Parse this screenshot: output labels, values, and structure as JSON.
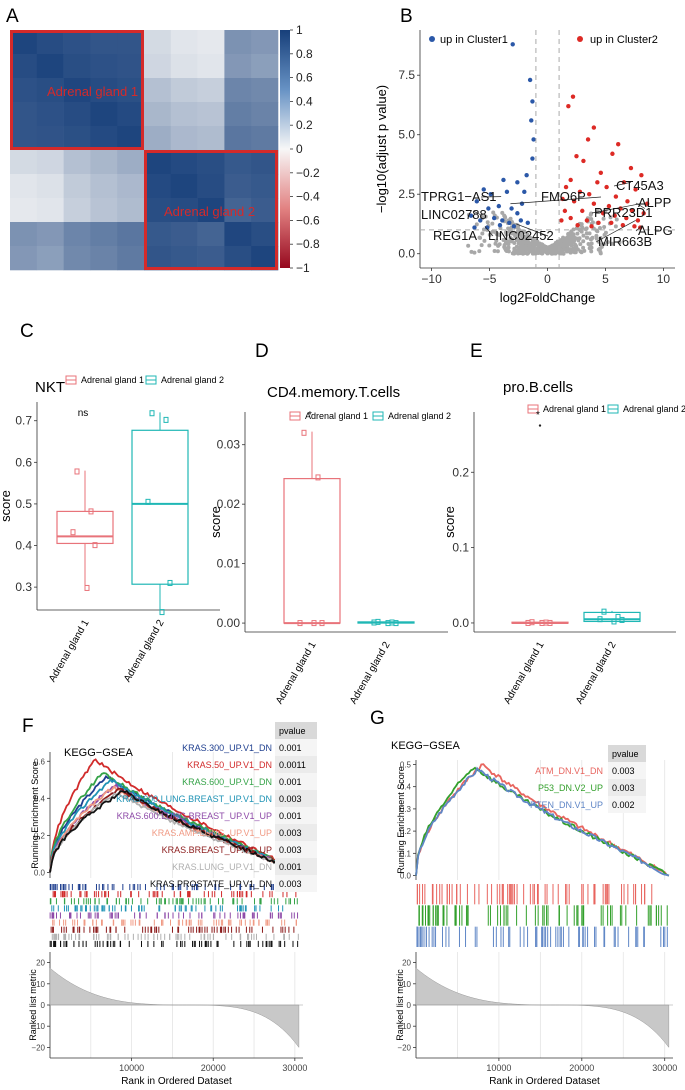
{
  "panel_letters": [
    "A",
    "B",
    "C",
    "D",
    "E",
    "F",
    "G"
  ],
  "colors": {
    "group1": "#e8737a",
    "group2": "#1fb7b5",
    "heat_dark_blue": "#173f7a",
    "heat_red": "#b40e26",
    "volcano_blue": "#2b58a8",
    "volcano_red": "#dd2a25",
    "volcano_grey": "#a8a8a8",
    "cluster_box": "#d42a2a"
  },
  "chart_data": [
    {
      "id": "A",
      "type": "heatmap",
      "title": "",
      "cluster_labels": [
        "Adrenal gland 1",
        "Adrenal gland 2"
      ],
      "colorbar_ticks": [
        "1",
        "0.8",
        "0.6",
        "0.4",
        "0.2",
        "0",
        "−0.2",
        "−0.4",
        "−0.6",
        "−0.8",
        "−1"
      ],
      "colorbar_range": [
        -1,
        1
      ],
      "matrix": [
        [
          0.97,
          0.93,
          0.9,
          0.88,
          0.88,
          0.16,
          0.1,
          0.08,
          0.55,
          0.52
        ],
        [
          0.93,
          0.97,
          0.92,
          0.9,
          0.89,
          0.18,
          0.12,
          0.1,
          0.52,
          0.48
        ],
        [
          0.9,
          0.92,
          0.96,
          0.93,
          0.91,
          0.3,
          0.24,
          0.22,
          0.62,
          0.6
        ],
        [
          0.88,
          0.9,
          0.93,
          0.97,
          0.94,
          0.35,
          0.3,
          0.28,
          0.66,
          0.63
        ],
        [
          0.88,
          0.89,
          0.91,
          0.94,
          0.97,
          0.4,
          0.34,
          0.32,
          0.7,
          0.68
        ],
        [
          0.16,
          0.18,
          0.3,
          0.35,
          0.4,
          0.97,
          0.94,
          0.92,
          0.86,
          0.88
        ],
        [
          0.1,
          0.12,
          0.24,
          0.3,
          0.34,
          0.94,
          0.97,
          0.93,
          0.84,
          0.86
        ],
        [
          0.08,
          0.1,
          0.22,
          0.28,
          0.32,
          0.92,
          0.93,
          0.97,
          0.8,
          0.84
        ],
        [
          0.55,
          0.52,
          0.62,
          0.66,
          0.7,
          0.86,
          0.84,
          0.8,
          0.96,
          0.92
        ],
        [
          0.52,
          0.48,
          0.6,
          0.63,
          0.68,
          0.88,
          0.86,
          0.84,
          0.92,
          0.97
        ]
      ]
    },
    {
      "id": "B",
      "type": "scatter",
      "title": "",
      "xlabel": "log2FoldChange",
      "ylabel": "−log10(adjust p value)",
      "xlim": [
        -11,
        11
      ],
      "ylim": [
        -0.6,
        9.4
      ],
      "xticks": [
        "−10",
        "−5",
        "0",
        "5",
        "10"
      ],
      "xtick_values": [
        -10,
        -5,
        0,
        5,
        10
      ],
      "yticks": [
        "0.0",
        "2.5",
        "5.0",
        "7.5"
      ],
      "ytick_values": [
        0,
        2.5,
        5,
        7.5
      ],
      "legend": [
        "up in Cluster1",
        "up in Cluster2"
      ],
      "thresholds": {
        "fc": [
          -1,
          1
        ],
        "p": 1.0
      },
      "up_cluster1": [
        [
          -3.0,
          8.8
        ],
        [
          -1.5,
          7.3
        ],
        [
          -1.3,
          6.4
        ],
        [
          -1.4,
          5.6
        ],
        [
          -1.2,
          4.8
        ],
        [
          -1.3,
          4.0
        ],
        [
          -1.8,
          3.3
        ],
        [
          -3.8,
          3.1
        ],
        [
          -2.6,
          3.0
        ],
        [
          -4.9,
          2.5
        ],
        [
          -5.5,
          2.7
        ],
        [
          -3.5,
          2.6
        ],
        [
          -2.0,
          2.6
        ],
        [
          -6.1,
          2.2
        ],
        [
          -2.2,
          2.1
        ],
        [
          -4.2,
          2.0
        ],
        [
          -5.1,
          1.9
        ],
        [
          -6.6,
          1.6
        ],
        [
          -3.1,
          1.9
        ],
        [
          -2.6,
          1.7
        ],
        [
          -4.6,
          1.5
        ],
        [
          -5.8,
          1.4
        ],
        [
          -3.9,
          1.4
        ],
        [
          -2.3,
          1.4
        ],
        [
          -3.3,
          1.3
        ],
        [
          -4.1,
          1.2
        ],
        [
          -6.3,
          1.1
        ],
        [
          -2.9,
          1.15
        ],
        [
          -1.7,
          1.3
        ],
        [
          -5.2,
          1.1
        ]
      ],
      "up_cluster2": [
        [
          2.2,
          6.6
        ],
        [
          1.8,
          6.2
        ],
        [
          4.0,
          5.3
        ],
        [
          3.5,
          4.8
        ],
        [
          5.6,
          4.2
        ],
        [
          6.1,
          4.6
        ],
        [
          7.2,
          3.6
        ],
        [
          8.1,
          3.3
        ],
        [
          2.5,
          4.1
        ],
        [
          3.1,
          3.9
        ],
        [
          4.6,
          3.4
        ],
        [
          6.6,
          3.0
        ],
        [
          7.6,
          2.7
        ],
        [
          2.0,
          3.1
        ],
        [
          4.3,
          3.0
        ],
        [
          5.1,
          2.8
        ],
        [
          1.6,
          2.8
        ],
        [
          2.8,
          2.6
        ],
        [
          3.6,
          2.5
        ],
        [
          5.9,
          2.4
        ],
        [
          6.9,
          2.2
        ],
        [
          8.6,
          2.1
        ],
        [
          1.3,
          2.3
        ],
        [
          2.3,
          2.2
        ],
        [
          4.0,
          2.1
        ],
        [
          5.3,
          2.0
        ],
        [
          6.3,
          1.9
        ],
        [
          7.3,
          1.8
        ],
        [
          8.3,
          1.7
        ],
        [
          1.5,
          1.8
        ],
        [
          3.0,
          1.8
        ],
        [
          4.8,
          1.7
        ],
        [
          5.8,
          1.6
        ],
        [
          6.8,
          1.5
        ],
        [
          7.8,
          1.4
        ],
        [
          2.0,
          1.5
        ],
        [
          3.4,
          1.4
        ],
        [
          4.4,
          1.3
        ],
        [
          5.5,
          1.3
        ],
        [
          6.5,
          1.2
        ],
        [
          7.5,
          1.15
        ],
        [
          8.0,
          1.1
        ],
        [
          1.2,
          1.4
        ],
        [
          2.6,
          1.2
        ],
        [
          3.8,
          1.15
        ]
      ],
      "labels": [
        "TPRG1−AS1",
        "FMO6P",
        "LINC02788",
        "REG1A",
        "LINC02452",
        "CT45A3",
        "PRR23D1",
        "ALPP",
        "MIR663B",
        "ALPG"
      ]
    },
    {
      "id": "C",
      "type": "box",
      "title": "NKT",
      "ylabel": "score",
      "legend": [
        "Adrenal gland 1",
        "Adrenal gland 2"
      ],
      "ylim": [
        0.245,
        0.745
      ],
      "yticks": [
        "0.3",
        "0.4",
        "0.5",
        "0.6",
        "0.7"
      ],
      "ytick_values": [
        0.3,
        0.4,
        0.5,
        0.6,
        0.7
      ],
      "annotation": "ns",
      "categories": [
        "Adrenal gland 1",
        "Adrenal gland 2"
      ],
      "boxes": [
        {
          "min": 0.295,
          "q1": 0.405,
          "median": 0.422,
          "q3": 0.482,
          "max": 0.58,
          "points": [
            0.578,
            0.482,
            0.432,
            0.401,
            0.298
          ]
        },
        {
          "min": 0.243,
          "q1": 0.307,
          "median": 0.5,
          "q3": 0.677,
          "max": 0.72,
          "points": [
            0.718,
            0.702,
            0.505,
            0.31,
            0.24
          ]
        }
      ],
      "outliers": []
    },
    {
      "id": "D",
      "type": "box",
      "title": "CD4.memory.T.cells",
      "ylabel": "score",
      "legend": [
        "Adrenal gland 1",
        "Adrenal gland 2"
      ],
      "ylim": [
        -0.0015,
        0.0355
      ],
      "yticks": [
        "0.00",
        "0.01",
        "0.02",
        "0.03"
      ],
      "ytick_values": [
        0,
        0.01,
        0.02,
        0.03
      ],
      "annotation": "*",
      "categories": [
        "Adrenal gland 1",
        "Adrenal gland 2"
      ],
      "boxes": [
        {
          "min": 0,
          "q1": 0,
          "median": 0,
          "q3": 0.0243,
          "max": 0.0322,
          "points": [
            0.032,
            0.0245,
            0.0,
            0.0,
            0.0
          ]
        },
        {
          "min": 0,
          "q1": 0,
          "median": 0.0001,
          "q3": 0.0002,
          "max": 0.0003,
          "points": [
            0.0002,
            0.0001,
            0.0001,
            0.0,
            0.0
          ]
        }
      ],
      "outliers": []
    },
    {
      "id": "E",
      "type": "box",
      "title": "pro.B.cells",
      "ylabel": "score",
      "legend": [
        "Adrenal gland 1",
        "Adrenal gland 2"
      ],
      "ylim": [
        -0.012,
        0.28
      ],
      "yticks": [
        "0.0",
        "0.1",
        "0.2"
      ],
      "ytick_values": [
        0,
        0.1,
        0.2
      ],
      "annotation": "*",
      "categories": [
        "Adrenal gland 1",
        "Adrenal gland 2"
      ],
      "boxes": [
        {
          "min": 0,
          "q1": 0,
          "median": 0,
          "q3": 0.001,
          "max": 0.002,
          "points": [
            0.001,
            0.0005,
            0.0,
            0.0,
            0.0
          ]
        },
        {
          "min": 0.001,
          "q1": 0.002,
          "median": 0.005,
          "q3": 0.014,
          "max": 0.016,
          "points": [
            0.015,
            0.008,
            0.005,
            0.004,
            0.002
          ]
        }
      ],
      "outliers": [
        0.262
      ]
    },
    {
      "id": "F",
      "type": "line",
      "title": "KEGG−GSEA",
      "xlabel": "Rank in Ordered Dataset",
      "ylabel": "Running Enrichment Score",
      "metric_label": "Ranked list metric",
      "xlim": [
        0,
        31000
      ],
      "xticks": [
        "10000",
        "20000",
        "30000"
      ],
      "xtick_values": [
        10000,
        20000,
        30000
      ],
      "ylim": [
        -0.03,
        0.65
      ],
      "yticks": [
        "0.0",
        "0.2",
        "0.4",
        "0.6"
      ],
      "ytick_values": [
        0,
        0.2,
        0.4,
        0.6
      ],
      "metric_ylim": [
        -25,
        25
      ],
      "metric_yticks": [
        "20",
        "10",
        "0",
        "−10",
        "−20"
      ],
      "metric_ytick_values": [
        20,
        10,
        0,
        -10,
        -20
      ],
      "pvalue_header": "pvalue",
      "series": [
        {
          "name": "KRAS.300_UP.V1_DN",
          "color": "#1f3f8f",
          "pvalue": "0.001",
          "peak": 0.52,
          "peak_x": 7000
        },
        {
          "name": "KRAS.50_UP.V1_DN",
          "color": "#d12b2b",
          "pvalue": "0.0011",
          "peak": 0.61,
          "peak_x": 5500
        },
        {
          "name": "KRAS.600_UP.V1_DN",
          "color": "#35a348",
          "pvalue": "0.001",
          "peak": 0.54,
          "peak_x": 6500
        },
        {
          "name": "KRAS.600.LUNG.BREAST_UP.V1_DN",
          "color": "#1f93b5",
          "pvalue": "0.003",
          "peak": 0.5,
          "peak_x": 7500
        },
        {
          "name": "KRAS.600.LUNG.BREAST_UP.V1_UP",
          "color": "#8e4aa8",
          "pvalue": "0.001",
          "peak": 0.47,
          "peak_x": 8000
        },
        {
          "name": "KRAS.AMP.LUNG_UP.V1_UP",
          "color": "#f09a84",
          "pvalue": "0.003",
          "peak": 0.46,
          "peak_x": 7800
        },
        {
          "name": "KRAS.BREAST_UP.V1_UP",
          "color": "#8c1c1c",
          "pvalue": "0.003",
          "peak": 0.45,
          "peak_x": 8500
        },
        {
          "name": "KRAS.LUNG_UP.V1_DN",
          "color": "#b0b0b0",
          "pvalue": "0.001",
          "peak": 0.43,
          "peak_x": 8200
        },
        {
          "name": "KRAS.PROSTATE_UP.V1_DN",
          "color": "#111111",
          "pvalue": "0.003",
          "peak": 0.44,
          "peak_x": 9000
        }
      ]
    },
    {
      "id": "G",
      "type": "line",
      "title": "KEGG−GSEA",
      "xlabel": "Rank in Ordered Dataset",
      "ylabel": "Running Enrichment Score",
      "metric_label": "Ranked list metric",
      "xlim": [
        0,
        31000
      ],
      "xticks": [
        "10000",
        "20000",
        "30000"
      ],
      "xtick_values": [
        10000,
        20000,
        30000
      ],
      "ylim": [
        -0.02,
        0.52
      ],
      "yticks": [
        "0.0",
        "0.1",
        "0.2",
        "0.3",
        "0.4",
        "0.5"
      ],
      "ytick_values": [
        0,
        0.1,
        0.2,
        0.3,
        0.4,
        0.5
      ],
      "metric_ylim": [
        -25,
        25
      ],
      "metric_yticks": [
        "20",
        "10",
        "0",
        "−10",
        "−20"
      ],
      "metric_ytick_values": [
        20,
        10,
        0,
        -10,
        -20
      ],
      "pvalue_header": "pvalue",
      "series": [
        {
          "name": "ATM_DN.V1_DN",
          "color": "#e8655f",
          "pvalue": "0.003",
          "peak": 0.5,
          "peak_x": 8000
        },
        {
          "name": "P53_DN.V2_UP",
          "color": "#33a02c",
          "pvalue": "0.003",
          "peak": 0.49,
          "peak_x": 7000
        },
        {
          "name": "PTEN_DN.V1_UP",
          "color": "#5f86c6",
          "pvalue": "0.002",
          "peak": 0.48,
          "peak_x": 7500
        }
      ]
    }
  ]
}
